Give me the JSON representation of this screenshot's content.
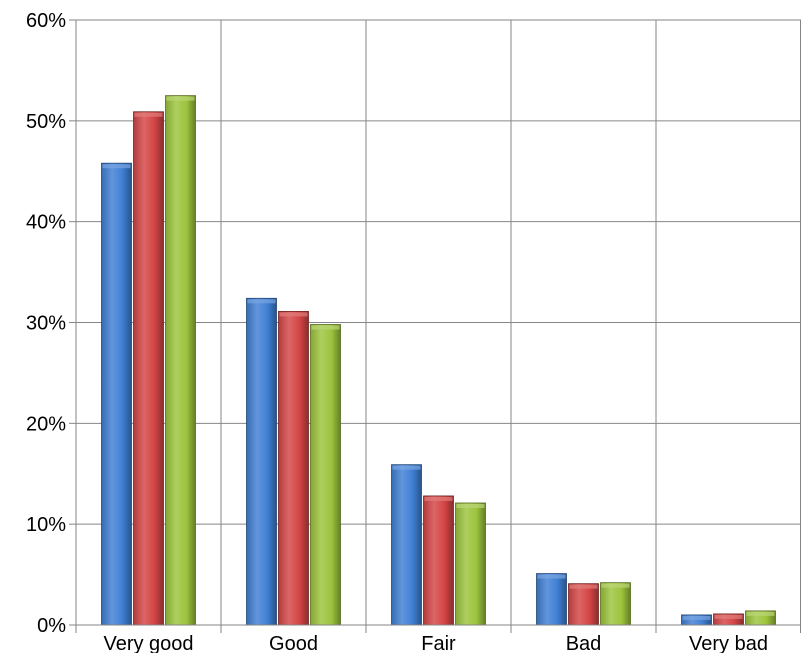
{
  "chart_data": {
    "type": "bar",
    "categories": [
      "Very good",
      "Good",
      "Fair",
      "Bad",
      "Very bad"
    ],
    "series": [
      {
        "color": "#3f7fd4",
        "values": [
          45.8,
          32.4,
          15.9,
          5.1,
          1.0
        ]
      },
      {
        "color": "#d44545",
        "values": [
          50.9,
          31.1,
          12.8,
          4.1,
          1.1
        ]
      },
      {
        "color": "#9cc43c",
        "values": [
          52.5,
          29.8,
          12.1,
          4.2,
          1.4
        ]
      }
    ],
    "ylim": [
      0,
      60
    ],
    "yticks": [
      0,
      10,
      20,
      30,
      40,
      50,
      60
    ],
    "ytick_labels": [
      "0%",
      "10%",
      "20%",
      "30%",
      "40%",
      "50%",
      "60%"
    ],
    "grid": true,
    "legend": "none"
  }
}
